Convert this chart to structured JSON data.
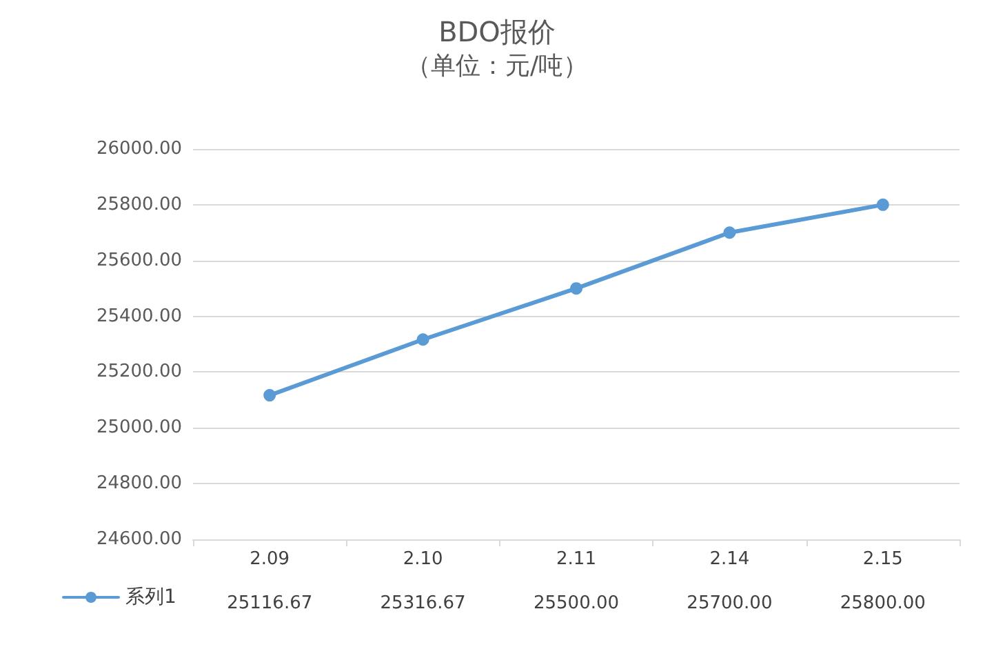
{
  "chart_data": {
    "type": "line",
    "title": "BDO报价",
    "subtitle": "（单位：元/吨）",
    "categories": [
      "2.09",
      "2.10",
      "2.11",
      "2.14",
      "2.15"
    ],
    "series": [
      {
        "name": "系列1",
        "color": "#5b9bd5",
        "values": [
          25116.67,
          25316.67,
          25500,
          25700,
          25800
        ],
        "value_labels": [
          "25116.67",
          "25316.67",
          "25500.00",
          "25700.00",
          "25800.00"
        ]
      }
    ],
    "ylim": [
      24600,
      26000
    ],
    "yticks": [
      {
        "value": 24600,
        "label": "24600.00"
      },
      {
        "value": 24800,
        "label": "24800.00"
      },
      {
        "value": 25000,
        "label": "25000.00"
      },
      {
        "value": 25200,
        "label": "25200.00"
      },
      {
        "value": 25400,
        "label": "25400.00"
      },
      {
        "value": 25600,
        "label": "25600.00"
      },
      {
        "value": 25800,
        "label": "25800.00"
      },
      {
        "value": 26000,
        "label": "26000.00"
      }
    ],
    "grid": "y",
    "legend": "bottom left",
    "marker": "circle",
    "line_style": "solid"
  }
}
